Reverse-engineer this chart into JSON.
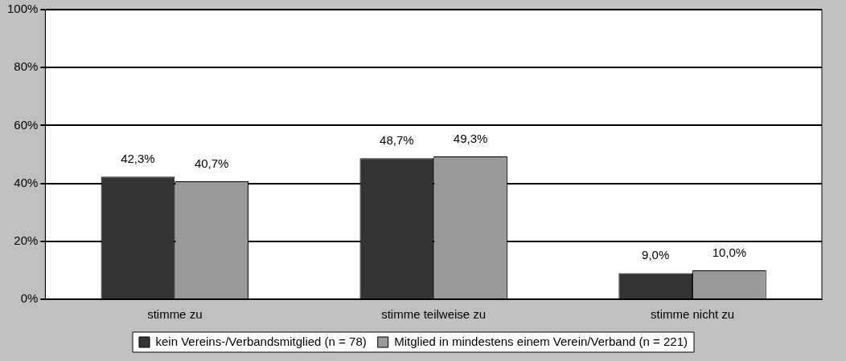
{
  "chart_data": {
    "type": "bar",
    "categories": [
      "stimme zu",
      "stimme teilweise zu",
      "stimme nicht zu"
    ],
    "series": [
      {
        "name": "kein Vereins-/Verbandsmitglied (n = 78)",
        "color": "#333333",
        "values": [
          42.3,
          48.7,
          9.0
        ],
        "value_labels": [
          "42,3%",
          "48,7%",
          "9,0%"
        ]
      },
      {
        "name": "Mitglied in mindestens einem Verein/Verband (n = 221)",
        "color": "#999999",
        "values": [
          40.7,
          49.3,
          10.0
        ],
        "value_labels": [
          "40,7%",
          "49,3%",
          "10,0%"
        ]
      }
    ],
    "ylim": [
      0,
      100
    ],
    "yticks": [
      {
        "value": 0,
        "label": "0%"
      },
      {
        "value": 20,
        "label": "20%"
      },
      {
        "value": 40,
        "label": "40%"
      },
      {
        "value": 60,
        "label": "60%"
      },
      {
        "value": 80,
        "label": "80%"
      },
      {
        "value": 100,
        "label": "100%"
      }
    ],
    "grid": "y",
    "legend": "bottom"
  }
}
